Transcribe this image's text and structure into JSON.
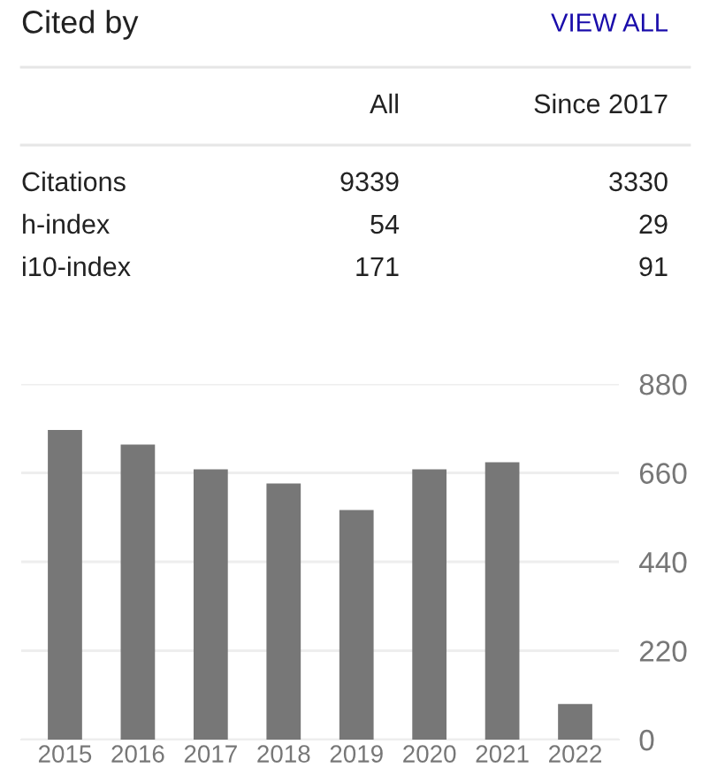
{
  "chart_data": [
    {
      "type": "other",
      "title": "Cited by",
      "annotations": [
        "VIEW ALL",
        "All",
        "Since 2017",
        "Citations",
        "9339",
        "3330",
        "h-index",
        "54",
        "29",
        "i10-index",
        "171",
        "91"
      ]
    },
    {
      "type": "bar",
      "categories": [
        "2015",
        "2016",
        "2017",
        "2018",
        "2019",
        "2020",
        "2021",
        "2022"
      ],
      "values": [
        766,
        730,
        669,
        634,
        568,
        669,
        686,
        88
      ],
      "color": "#777777",
      "ylim": [
        0,
        880
      ],
      "yticks": [
        0,
        220,
        440,
        660,
        880
      ],
      "grid": "y"
    }
  ]
}
